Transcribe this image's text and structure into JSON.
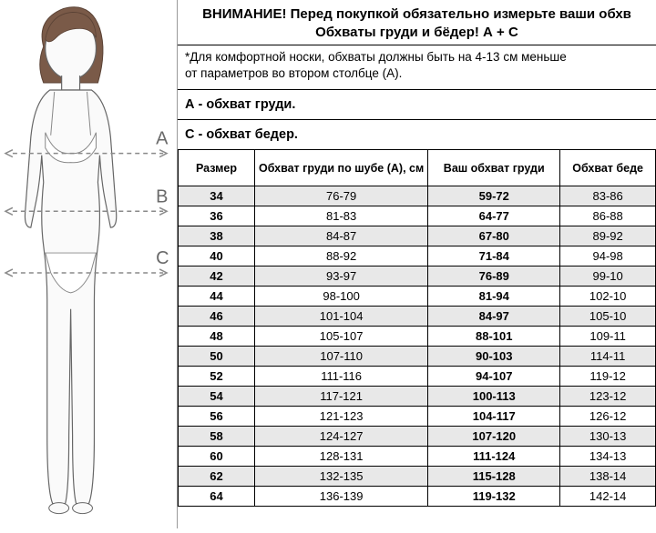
{
  "header": {
    "title": "ВНИМАНИЕ! Перед покупкой обязательно измерьте ваши обхв",
    "subtitle": "Обхваты груди и бёдер! А + С"
  },
  "note": {
    "line1": "*Для комфортной носки, обхваты должны быть на 4-13 см меньше",
    "line2": "от параметров во втором столбце (А)."
  },
  "section_a": "А - обхват груди.",
  "section_c": "С - обхват бедер.",
  "table": {
    "columns": [
      "Размер",
      "Обхват груди по шубе (А), см",
      "Ваш обхват груди",
      "Обхват беде"
    ],
    "rows": [
      [
        "34",
        "76-79",
        "59-72",
        "83-86"
      ],
      [
        "36",
        "81-83",
        "64-77",
        "86-88"
      ],
      [
        "38",
        "84-87",
        "67-80",
        "89-92"
      ],
      [
        "40",
        "88-92",
        "71-84",
        "94-98"
      ],
      [
        "42",
        "93-97",
        "76-89",
        "99-10"
      ],
      [
        "44",
        "98-100",
        "81-94",
        "102-10"
      ],
      [
        "46",
        "101-104",
        "84-97",
        "105-10"
      ],
      [
        "48",
        "105-107",
        "88-101",
        "109-11"
      ],
      [
        "50",
        "107-110",
        "90-103",
        "114-11"
      ],
      [
        "52",
        "111-116",
        "94-107",
        "119-12"
      ],
      [
        "54",
        "117-121",
        "100-113",
        "123-12"
      ],
      [
        "56",
        "121-123",
        "104-117",
        "126-12"
      ],
      [
        "58",
        "124-127",
        "107-120",
        "130-13"
      ],
      [
        "60",
        "128-131",
        "111-124",
        "134-13"
      ],
      [
        "62",
        "132-135",
        "115-128",
        "138-14"
      ],
      [
        "64",
        "136-139",
        "119-132",
        "142-14"
      ]
    ]
  },
  "figure": {
    "labels": {
      "a": "A",
      "b": "B",
      "c": "C"
    },
    "colors": {
      "body_stroke": "#666666",
      "body_fill": "#fafafa",
      "hair_fill": "#7a5a48",
      "hair_stroke": "#5a4235",
      "underwear": "#ffffff",
      "underwear_stroke": "#888888",
      "line": "#8a8a8a",
      "label": "#6a6a6a"
    }
  }
}
